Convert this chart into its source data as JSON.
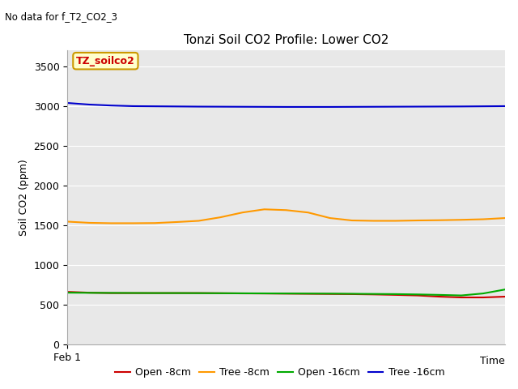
{
  "title": "Tonzi Soil CO2 Profile: Lower CO2",
  "no_data_text": "No data for f_T2_CO2_3",
  "xlabel": "Time",
  "ylabel": "Soil CO2 (ppm)",
  "ylim": [
    0,
    3700
  ],
  "yticks": [
    0,
    500,
    1000,
    1500,
    2000,
    2500,
    3000,
    3500
  ],
  "xlabel_start": "Feb 1",
  "background_color": "#e8e8e8",
  "legend_label": "TZ_soilco2",
  "legend_box_color": "#ffffcc",
  "legend_box_border": "#cc9900",
  "legend_text_color": "#cc0000",
  "series": {
    "open_8cm": {
      "label": "Open -8cm",
      "color": "#cc0000",
      "x": [
        0,
        0.05,
        0.1,
        0.15,
        0.2,
        0.25,
        0.3,
        0.35,
        0.4,
        0.45,
        0.5,
        0.55,
        0.6,
        0.65,
        0.7,
        0.75,
        0.8,
        0.85,
        0.9,
        0.95,
        1.0
      ],
      "y": [
        660,
        650,
        645,
        645,
        645,
        645,
        645,
        643,
        641,
        640,
        638,
        636,
        634,
        632,
        628,
        622,
        615,
        600,
        590,
        590,
        600
      ]
    },
    "tree_8cm": {
      "label": "Tree -8cm",
      "color": "#ff9900",
      "x": [
        0,
        0.05,
        0.1,
        0.15,
        0.2,
        0.25,
        0.3,
        0.35,
        0.4,
        0.45,
        0.5,
        0.55,
        0.6,
        0.65,
        0.7,
        0.75,
        0.8,
        0.85,
        0.9,
        0.95,
        1.0
      ],
      "y": [
        1545,
        1530,
        1525,
        1525,
        1527,
        1540,
        1555,
        1600,
        1660,
        1700,
        1690,
        1660,
        1590,
        1560,
        1555,
        1555,
        1560,
        1563,
        1568,
        1575,
        1590
      ]
    },
    "open_16cm": {
      "label": "Open -16cm",
      "color": "#00aa00",
      "x": [
        0,
        0.05,
        0.1,
        0.15,
        0.2,
        0.25,
        0.3,
        0.35,
        0.4,
        0.45,
        0.5,
        0.55,
        0.6,
        0.65,
        0.7,
        0.75,
        0.8,
        0.85,
        0.9,
        0.95,
        1.0
      ],
      "y": [
        650,
        648,
        647,
        646,
        645,
        645,
        644,
        643,
        642,
        641,
        640,
        639,
        638,
        636,
        634,
        632,
        628,
        622,
        615,
        640,
        690
      ]
    },
    "tree_16cm": {
      "label": "Tree -16cm",
      "color": "#0000cc",
      "x": [
        0,
        0.05,
        0.1,
        0.15,
        0.2,
        0.25,
        0.3,
        0.35,
        0.4,
        0.45,
        0.5,
        0.55,
        0.6,
        0.65,
        0.7,
        0.75,
        0.8,
        0.85,
        0.9,
        0.95,
        1.0
      ],
      "y": [
        3040,
        3020,
        3008,
        3000,
        2998,
        2996,
        2994,
        2993,
        2992,
        2991,
        2990,
        2990,
        2990,
        2991,
        2992,
        2993,
        2994,
        2995,
        2996,
        2998,
        3000
      ]
    }
  }
}
